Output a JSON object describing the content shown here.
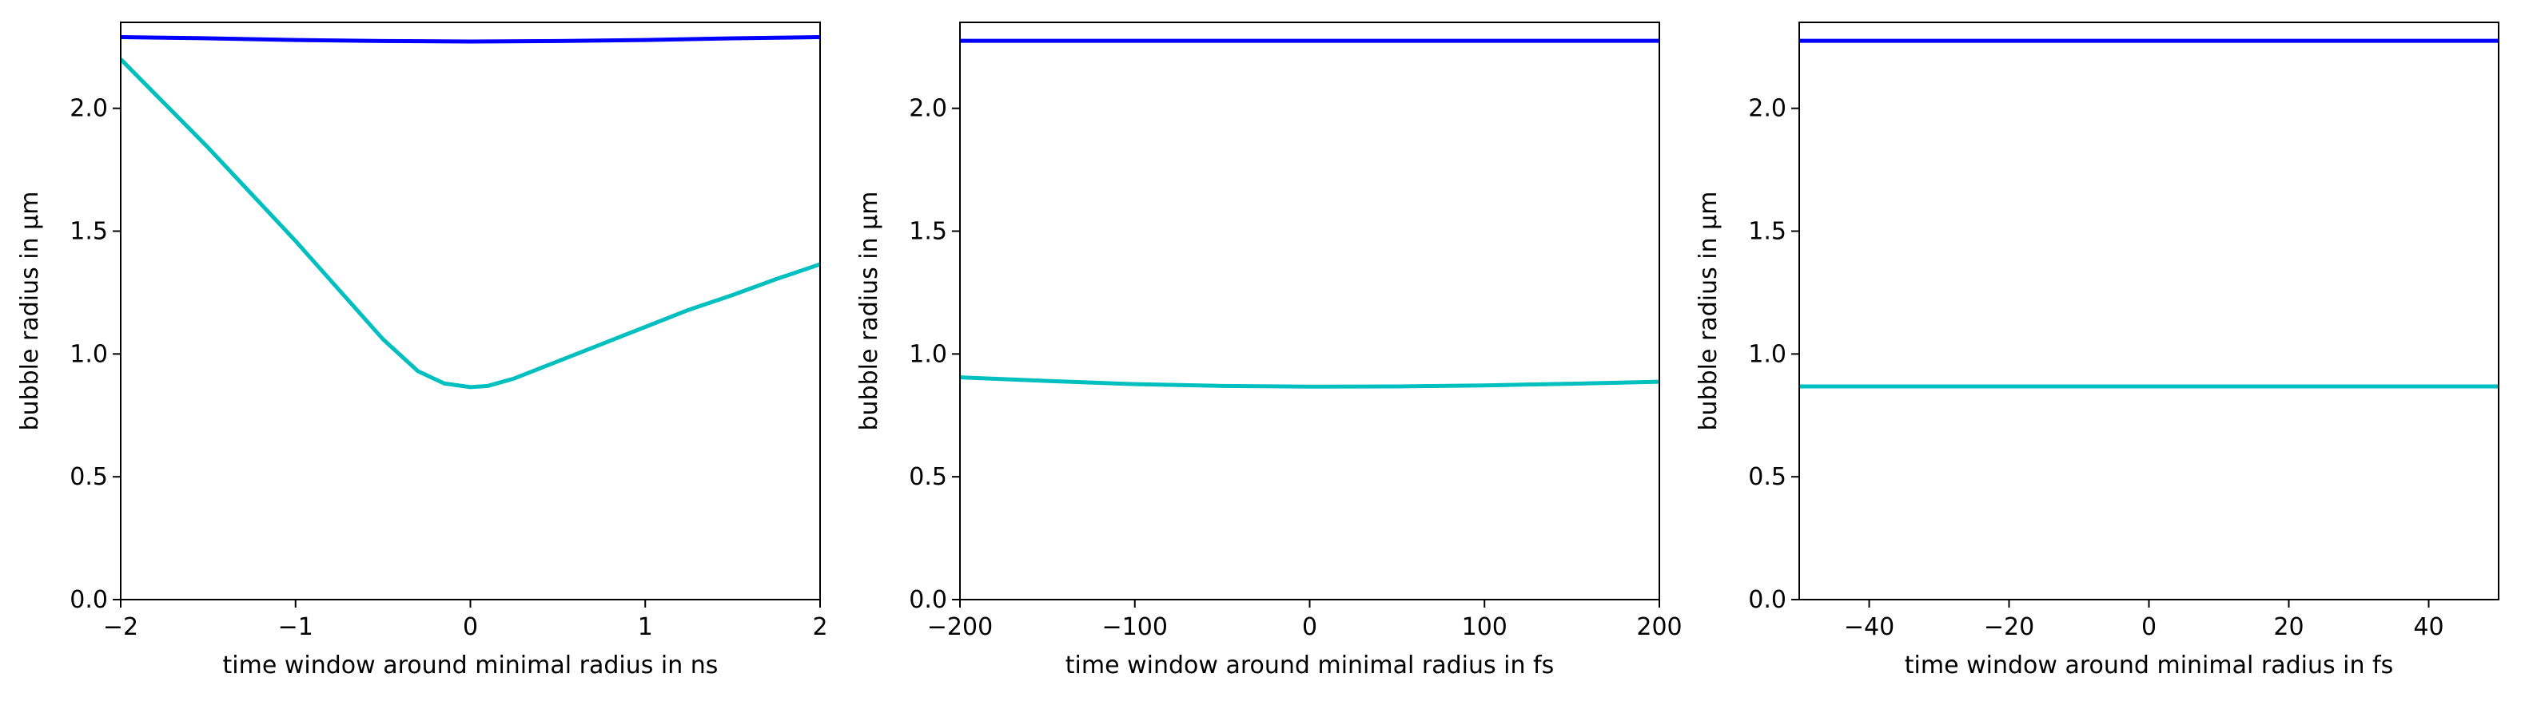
{
  "figure": {
    "background": "#ffffff"
  },
  "chart_data": [
    {
      "type": "line",
      "xlabel": "time window around minimal radius in ns",
      "ylabel": "bubble radius in μm",
      "xlim": [
        -2,
        2
      ],
      "ylim": [
        0,
        2.35
      ],
      "xticks": [
        -2,
        -1,
        0,
        1,
        2
      ],
      "xtick_labels": [
        "−2",
        "−1",
        "0",
        "1",
        "2"
      ],
      "yticks": [
        0,
        0.5,
        1.0,
        1.5,
        2.0
      ],
      "ytick_labels": [
        "0.0",
        "0.5",
        "1.0",
        "1.5",
        "2.0"
      ],
      "grid": false,
      "series": [
        {
          "color": "#0000ff",
          "x": [
            -2,
            -1.5,
            -1,
            -0.5,
            0,
            0.5,
            1,
            1.5,
            2
          ],
          "y": [
            2.29,
            2.285,
            2.278,
            2.274,
            2.272,
            2.274,
            2.278,
            2.285,
            2.29
          ]
        },
        {
          "color": "#00bfbf",
          "x": [
            -2,
            -1.75,
            -1.5,
            -1.25,
            -1,
            -0.75,
            -0.5,
            -0.3,
            -0.15,
            0,
            0.1,
            0.25,
            0.5,
            0.75,
            1,
            1.25,
            1.5,
            1.75,
            2
          ],
          "y": [
            2.2,
            2.02,
            1.84,
            1.65,
            1.46,
            1.26,
            1.06,
            0.93,
            0.88,
            0.865,
            0.87,
            0.9,
            0.97,
            1.04,
            1.11,
            1.18,
            1.24,
            1.305,
            1.365
          ]
        }
      ]
    },
    {
      "type": "line",
      "xlabel": "time window around minimal radius in fs",
      "ylabel": "bubble radius in μm",
      "xlim": [
        -200,
        200
      ],
      "ylim": [
        0,
        2.35
      ],
      "xticks": [
        -200,
        -100,
        0,
        100,
        200
      ],
      "xtick_labels": [
        "−200",
        "−100",
        "0",
        "100",
        "200"
      ],
      "yticks": [
        0,
        0.5,
        1.0,
        1.5,
        2.0
      ],
      "ytick_labels": [
        "0.0",
        "0.5",
        "1.0",
        "1.5",
        "2.0"
      ],
      "grid": false,
      "series": [
        {
          "color": "#0000ff",
          "x": [
            -200,
            200
          ],
          "y": [
            2.275,
            2.275
          ]
        },
        {
          "color": "#00bfbf",
          "x": [
            -200,
            -150,
            -100,
            -50,
            0,
            50,
            100,
            150,
            200
          ],
          "y": [
            0.905,
            0.89,
            0.877,
            0.87,
            0.867,
            0.868,
            0.872,
            0.879,
            0.887
          ]
        }
      ]
    },
    {
      "type": "line",
      "xlabel": "time window around minimal radius in fs",
      "ylabel": "bubble radius in μm",
      "xlim": [
        -50,
        50
      ],
      "ylim": [
        0,
        2.35
      ],
      "xticks": [
        -40,
        -20,
        0,
        20,
        40
      ],
      "xtick_labels": [
        "−40",
        "−20",
        "0",
        "20",
        "40"
      ],
      "yticks": [
        0,
        0.5,
        1.0,
        1.5,
        2.0
      ],
      "ytick_labels": [
        "0.0",
        "0.5",
        "1.0",
        "1.5",
        "2.0"
      ],
      "grid": false,
      "series": [
        {
          "color": "#0000ff",
          "x": [
            -50,
            50
          ],
          "y": [
            2.275,
            2.275
          ]
        },
        {
          "color": "#00bfbf",
          "x": [
            -50,
            50
          ],
          "y": [
            0.868,
            0.868
          ]
        }
      ]
    }
  ]
}
